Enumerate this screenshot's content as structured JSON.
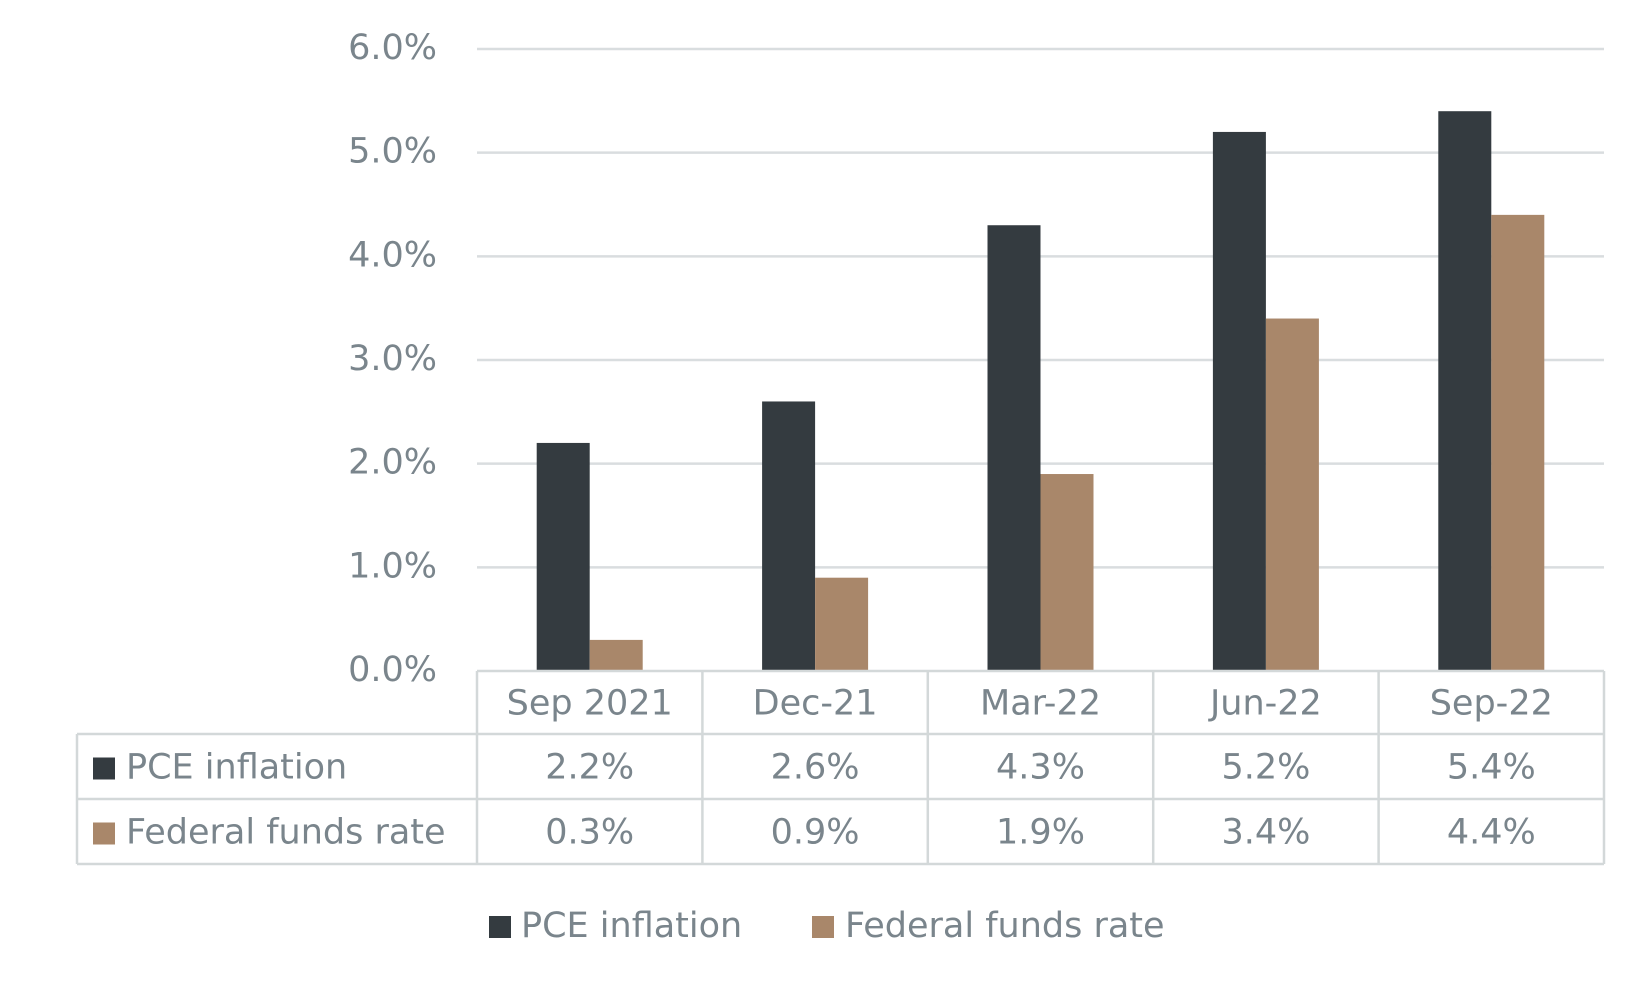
{
  "chart_data": {
    "type": "bar",
    "title": "",
    "xlabel": "",
    "ylabel": "",
    "categories": [
      "Sep 2021",
      "Dec-21",
      "Mar-22",
      "Jun-22",
      "Sep-22"
    ],
    "series": [
      {
        "name": "PCE inflation",
        "color": "#343b40",
        "values": [
          2.2,
          2.6,
          4.3,
          5.2,
          5.4
        ],
        "labels": [
          "2.2%",
          "2.6%",
          "4.3%",
          "5.2%",
          "5.4%"
        ]
      },
      {
        "name": "Federal funds rate",
        "color": "#a9876a",
        "values": [
          0.3,
          0.9,
          1.9,
          3.4,
          4.4
        ],
        "labels": [
          "0.3%",
          "0.9%",
          "1.9%",
          "3.4%",
          "4.4%"
        ]
      }
    ],
    "ylim": [
      0,
      6
    ],
    "yticks": [
      0,
      1,
      2,
      3,
      4,
      5,
      6
    ],
    "ytick_labels": [
      "0.0%",
      "1.0%",
      "2.0%",
      "3.0%",
      "4.0%",
      "5.0%",
      "6.0%"
    ],
    "grid": true,
    "data_table": true,
    "legend_position": "bottom",
    "colors": {
      "text": "#7a858c",
      "grid": "#d9dddf",
      "table_border": "#d3d8d9"
    }
  }
}
